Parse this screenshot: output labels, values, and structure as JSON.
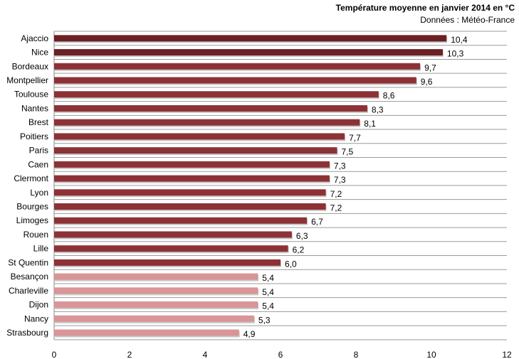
{
  "chart_data": {
    "type": "bar",
    "orientation": "horizontal",
    "title": "Température moyenne en janvier 2014 en °C",
    "subtitle": "Données : Météo-France",
    "xlabel": "",
    "ylabel": "",
    "xlim": [
      0,
      12
    ],
    "x_ticks": [
      0,
      2,
      4,
      6,
      8,
      10,
      12
    ],
    "grid": true,
    "categories": [
      "Ajaccio",
      "Nice",
      "Bordeaux",
      "Montpellier",
      "Toulouse",
      "Nantes",
      "Brest",
      "Poitiers",
      "Paris",
      "Caen",
      "Clermont",
      "Lyon",
      "Bourges",
      "Limoges",
      "Rouen",
      "Lille",
      "St Quentin",
      "Besançon",
      "Charleville",
      "Dijon",
      "Nancy",
      "Strasbourg"
    ],
    "values": [
      10.4,
      10.3,
      9.7,
      9.6,
      8.6,
      8.3,
      8.1,
      7.7,
      7.5,
      7.3,
      7.3,
      7.2,
      7.2,
      6.7,
      6.3,
      6.2,
      6.0,
      5.4,
      5.4,
      5.4,
      5.3,
      4.9
    ],
    "value_labels": [
      "10,4",
      "10,3",
      "9,7",
      "9,6",
      "8,6",
      "8,3",
      "8,1",
      "7,7",
      "7,5",
      "7,3",
      "7,3",
      "7,2",
      "7,2",
      "6,7",
      "6,3",
      "6,2",
      "6,0",
      "5,4",
      "5,4",
      "5,4",
      "5,3",
      "4,9"
    ],
    "bar_colors": [
      "#6b2024",
      "#6b2024",
      "#8c3236",
      "#8c3236",
      "#8c3236",
      "#8c3236",
      "#8c3236",
      "#8c3236",
      "#8c3236",
      "#8c3236",
      "#8c3236",
      "#8c3236",
      "#8c3236",
      "#8c3236",
      "#8c3236",
      "#8c3236",
      "#8c3236",
      "#d99597",
      "#d99597",
      "#d99597",
      "#d99597",
      "#d99597"
    ]
  }
}
